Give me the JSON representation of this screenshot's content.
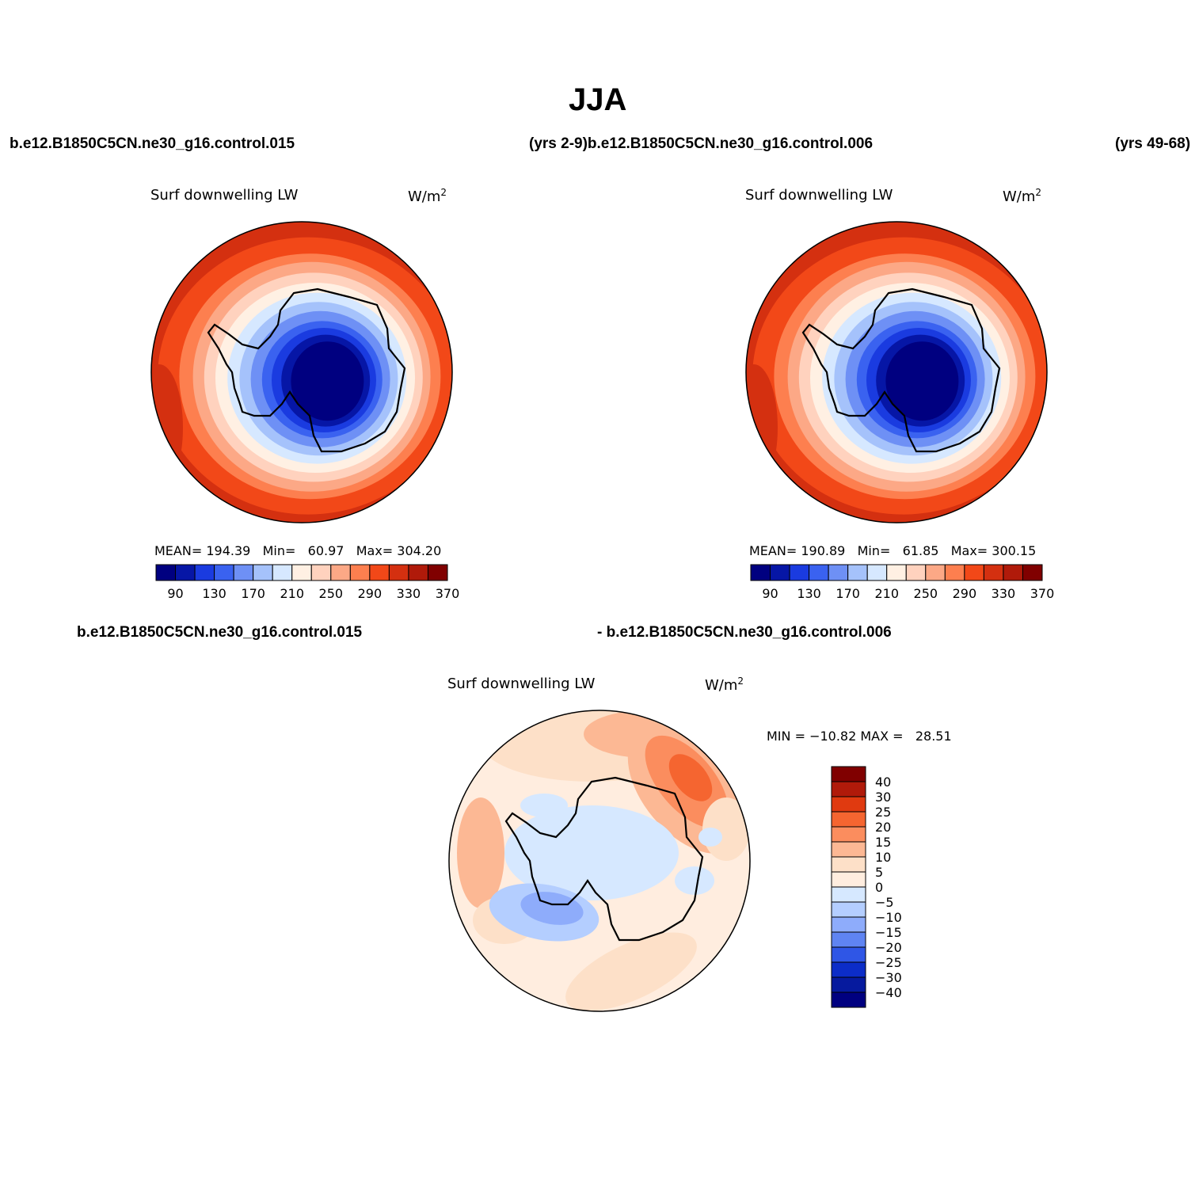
{
  "header": {
    "title": "JJA",
    "case_left": "b.e12.B1850C5CN.ne30_g16.control.015",
    "yrs_mid": "(yrs 2-9)b.e12.B1850C5CN.ne30_g16.control.006",
    "yrs_right": "(yrs 49-68)",
    "diff_left": "b.e12.B1850C5CN.ne30_g16.control.015",
    "diff_right": "- b.e12.B1850C5CN.ne30_g16.control.006"
  },
  "colors": {
    "abs_scale": [
      "#000080",
      "#0616a6",
      "#1a3be0",
      "#3a62f0",
      "#6e90f5",
      "#a5c2fb",
      "#d6e8ff",
      "#fff0e3",
      "#ffd2be",
      "#fca886",
      "#fd7f4f",
      "#f24818",
      "#d43010",
      "#b01a0a",
      "#800000"
    ],
    "diff_scale_top_to_bottom": [
      "#800000",
      "#b01a0a",
      "#e03a10",
      "#f56530",
      "#fb8d5e",
      "#fcb894",
      "#fde0c8",
      "#ffeddf",
      "#d6e8ff",
      "#b4ceff",
      "#8eacfb",
      "#5f84f2",
      "#2f56e6",
      "#0c2dc8",
      "#061a9e",
      "#000080"
    ]
  },
  "chart_data": [
    {
      "type": "heatmap",
      "name": "panel-015",
      "title": "Surf downwelling LW",
      "units": "W/m",
      "units_sup": "2",
      "stats": {
        "mean_label": "MEAN=",
        "mean": "194.39",
        "min_label": "Min=",
        "min": "60.97",
        "max_label": "Max=",
        "max": "304.20"
      },
      "colorbar_ticks": [
        "90",
        "130",
        "170",
        "210",
        "250",
        "290",
        "330",
        "370"
      ],
      "levels": [
        80,
        90,
        110,
        130,
        150,
        170,
        190,
        210,
        230,
        250,
        270,
        290,
        310,
        330,
        350,
        370
      ],
      "mean": 194.39,
      "min": 60.97,
      "max": 304.2
    },
    {
      "type": "heatmap",
      "name": "panel-006",
      "title": "Surf downwelling LW",
      "units": "W/m",
      "units_sup": "2",
      "stats": {
        "mean_label": "MEAN=",
        "mean": "190.89",
        "min_label": "Min=",
        "min": "61.85",
        "max_label": "Max=",
        "max": "300.15"
      },
      "colorbar_ticks": [
        "90",
        "130",
        "170",
        "210",
        "250",
        "290",
        "330",
        "370"
      ],
      "levels": [
        80,
        90,
        110,
        130,
        150,
        170,
        190,
        210,
        230,
        250,
        270,
        290,
        310,
        330,
        350,
        370
      ],
      "mean": 190.89,
      "min": 61.85,
      "max": 300.15
    },
    {
      "type": "heatmap",
      "name": "panel-diff",
      "title": "Surf downwelling LW",
      "units": "W/m",
      "units_sup": "2",
      "minmax": "MIN = −10.82 MAX =   28.51",
      "min": -10.82,
      "max": 28.51,
      "colorbar_ticks": [
        "40",
        "30",
        "25",
        "20",
        "15",
        "10",
        "5",
        "0",
        "−5",
        "−10",
        "−15",
        "−20",
        "−25",
        "−30",
        "−40"
      ]
    }
  ]
}
